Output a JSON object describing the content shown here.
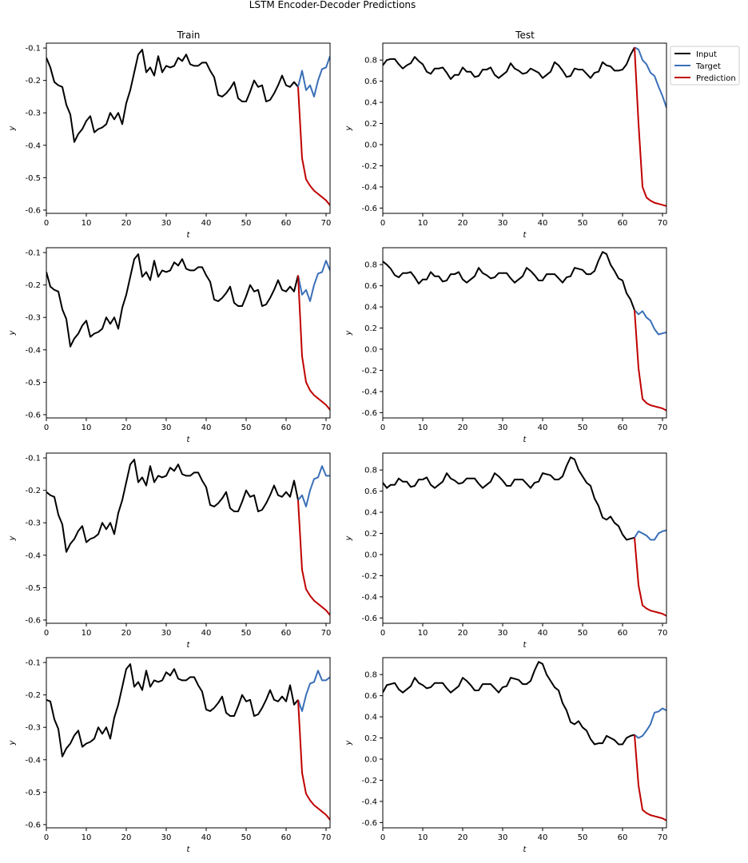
{
  "figure": {
    "title": "LSTM Encoder-Decoder Predictions",
    "col_titles": [
      "Train",
      "Test"
    ],
    "legend": [
      "Input",
      "Target",
      "Prediction"
    ]
  },
  "colors": {
    "input": "#000000",
    "target": "#3a6fb8",
    "prediction": "#c00000"
  },
  "chart_data": [
    {
      "type": "line",
      "panel": "Train row 1",
      "xlabel": "t",
      "ylabel": "y",
      "xlim": [
        0,
        71
      ],
      "ylim": [
        -0.61,
        -0.085
      ],
      "xticks": [
        0,
        10,
        20,
        30,
        40,
        50,
        60,
        70
      ],
      "yticks": [
        -0.6,
        -0.5,
        -0.4,
        -0.3,
        -0.2,
        -0.1
      ],
      "series": [
        {
          "name": "Input",
          "x_start": 0,
          "values": [
            -0.13,
            -0.16,
            -0.205,
            -0.215,
            -0.22,
            -0.275,
            -0.305,
            -0.39,
            -0.365,
            -0.35,
            -0.325,
            -0.31,
            -0.36,
            -0.35,
            -0.345,
            -0.335,
            -0.3,
            -0.32,
            -0.3,
            -0.335,
            -0.27,
            -0.23,
            -0.175,
            -0.12,
            -0.105,
            -0.175,
            -0.16,
            -0.185,
            -0.125,
            -0.175,
            -0.155,
            -0.16,
            -0.155,
            -0.13,
            -0.14,
            -0.12,
            -0.15,
            -0.155,
            -0.155,
            -0.145,
            -0.145,
            -0.17,
            -0.19,
            -0.245,
            -0.25,
            -0.24,
            -0.225,
            -0.205,
            -0.255,
            -0.265,
            -0.265,
            -0.235,
            -0.2,
            -0.22,
            -0.215,
            -0.265,
            -0.26,
            -0.24,
            -0.215,
            -0.185,
            -0.215,
            -0.22,
            -0.205,
            -0.22
          ]
        },
        {
          "name": "Target",
          "x_start": 63,
          "values": [
            -0.22,
            -0.17,
            -0.23,
            -0.215,
            -0.25,
            -0.2,
            -0.165,
            -0.16,
            -0.125
          ]
        },
        {
          "name": "Prediction",
          "x_start": 63,
          "values": [
            -0.22,
            -0.44,
            -0.505,
            -0.525,
            -0.54,
            -0.55,
            -0.56,
            -0.57,
            -0.585
          ]
        }
      ]
    },
    {
      "type": "line",
      "panel": "Test row 1",
      "xlabel": "t",
      "ylabel": "y",
      "xlim": [
        0,
        71
      ],
      "ylim": [
        -0.65,
        0.96
      ],
      "xticks": [
        0,
        10,
        20,
        30,
        40,
        50,
        60,
        70
      ],
      "yticks": [
        -0.6,
        -0.4,
        -0.2,
        0.0,
        0.2,
        0.4,
        0.6,
        0.8
      ],
      "series": [
        {
          "name": "Input",
          "x_start": 0,
          "values": [
            0.75,
            0.8,
            0.81,
            0.81,
            0.76,
            0.72,
            0.75,
            0.77,
            0.83,
            0.79,
            0.76,
            0.69,
            0.67,
            0.72,
            0.72,
            0.73,
            0.68,
            0.62,
            0.66,
            0.66,
            0.73,
            0.69,
            0.69,
            0.64,
            0.65,
            0.71,
            0.71,
            0.73,
            0.66,
            0.63,
            0.66,
            0.69,
            0.77,
            0.72,
            0.7,
            0.67,
            0.68,
            0.72,
            0.7,
            0.68,
            0.63,
            0.66,
            0.69,
            0.78,
            0.75,
            0.7,
            0.64,
            0.65,
            0.72,
            0.71,
            0.71,
            0.67,
            0.63,
            0.68,
            0.69,
            0.78,
            0.75,
            0.74,
            0.7,
            0.7,
            0.71,
            0.76,
            0.85,
            0.92
          ]
        },
        {
          "name": "Target",
          "x_start": 63,
          "values": [
            0.92,
            0.9,
            0.8,
            0.76,
            0.68,
            0.65,
            0.55,
            0.46,
            0.35
          ]
        },
        {
          "name": "Prediction",
          "x_start": 63,
          "values": [
            0.92,
            0.2,
            -0.4,
            -0.5,
            -0.53,
            -0.55,
            -0.56,
            -0.57,
            -0.58
          ]
        }
      ]
    },
    {
      "type": "line",
      "panel": "Train row 2",
      "xlabel": "t",
      "ylabel": "y",
      "xlim": [
        0,
        71
      ],
      "ylim": [
        -0.61,
        -0.085
      ],
      "xticks": [
        0,
        10,
        20,
        30,
        40,
        50,
        60,
        70
      ],
      "yticks": [
        -0.6,
        -0.5,
        -0.4,
        -0.3,
        -0.2,
        -0.1
      ],
      "series": [
        {
          "name": "Input",
          "x_start": 0,
          "values": [
            -0.16,
            -0.205,
            -0.215,
            -0.22,
            -0.275,
            -0.305,
            -0.39,
            -0.365,
            -0.35,
            -0.325,
            -0.31,
            -0.36,
            -0.35,
            -0.345,
            -0.335,
            -0.3,
            -0.32,
            -0.3,
            -0.335,
            -0.27,
            -0.23,
            -0.175,
            -0.12,
            -0.105,
            -0.175,
            -0.16,
            -0.185,
            -0.125,
            -0.175,
            -0.155,
            -0.16,
            -0.155,
            -0.13,
            -0.14,
            -0.12,
            -0.15,
            -0.155,
            -0.155,
            -0.145,
            -0.145,
            -0.17,
            -0.19,
            -0.245,
            -0.25,
            -0.24,
            -0.225,
            -0.205,
            -0.255,
            -0.265,
            -0.265,
            -0.235,
            -0.2,
            -0.22,
            -0.215,
            -0.265,
            -0.26,
            -0.24,
            -0.215,
            -0.185,
            -0.215,
            -0.22,
            -0.205,
            -0.22,
            -0.17
          ]
        },
        {
          "name": "Target",
          "x_start": 63,
          "values": [
            -0.17,
            -0.23,
            -0.215,
            -0.25,
            -0.2,
            -0.165,
            -0.16,
            -0.125,
            -0.155
          ]
        },
        {
          "name": "Prediction",
          "x_start": 63,
          "values": [
            -0.17,
            -0.42,
            -0.5,
            -0.525,
            -0.54,
            -0.55,
            -0.56,
            -0.57,
            -0.585
          ]
        }
      ]
    },
    {
      "type": "line",
      "panel": "Test row 2",
      "xlabel": "t",
      "ylabel": "y",
      "xlim": [
        0,
        71
      ],
      "ylim": [
        -0.65,
        0.96
      ],
      "xticks": [
        0,
        10,
        20,
        30,
        40,
        50,
        60,
        70
      ],
      "yticks": [
        -0.6,
        -0.4,
        -0.2,
        0.0,
        0.2,
        0.4,
        0.6,
        0.8
      ],
      "series": [
        {
          "name": "Input",
          "x_start": 0,
          "values": [
            0.83,
            0.8,
            0.76,
            0.7,
            0.68,
            0.72,
            0.72,
            0.73,
            0.68,
            0.62,
            0.66,
            0.66,
            0.73,
            0.69,
            0.69,
            0.64,
            0.65,
            0.71,
            0.71,
            0.73,
            0.66,
            0.63,
            0.66,
            0.69,
            0.77,
            0.72,
            0.7,
            0.67,
            0.68,
            0.72,
            0.72,
            0.72,
            0.67,
            0.63,
            0.66,
            0.69,
            0.77,
            0.74,
            0.7,
            0.65,
            0.65,
            0.71,
            0.71,
            0.71,
            0.67,
            0.63,
            0.68,
            0.69,
            0.77,
            0.76,
            0.75,
            0.71,
            0.71,
            0.74,
            0.84,
            0.92,
            0.9,
            0.8,
            0.74,
            0.67,
            0.65,
            0.53,
            0.47,
            0.37
          ]
        },
        {
          "name": "Target",
          "x_start": 63,
          "values": [
            0.37,
            0.33,
            0.36,
            0.3,
            0.27,
            0.19,
            0.14,
            0.15,
            0.16
          ]
        },
        {
          "name": "Prediction",
          "x_start": 63,
          "values": [
            0.37,
            -0.18,
            -0.47,
            -0.51,
            -0.53,
            -0.54,
            -0.55,
            -0.56,
            -0.58
          ]
        }
      ]
    },
    {
      "type": "line",
      "panel": "Train row 3",
      "xlabel": "t",
      "ylabel": "y",
      "xlim": [
        0,
        71
      ],
      "ylim": [
        -0.61,
        -0.085
      ],
      "xticks": [
        0,
        10,
        20,
        30,
        40,
        50,
        60,
        70
      ],
      "yticks": [
        -0.6,
        -0.5,
        -0.4,
        -0.3,
        -0.2,
        -0.1
      ],
      "series": [
        {
          "name": "Input",
          "x_start": 0,
          "values": [
            -0.205,
            -0.215,
            -0.22,
            -0.275,
            -0.305,
            -0.39,
            -0.365,
            -0.35,
            -0.325,
            -0.31,
            -0.36,
            -0.35,
            -0.345,
            -0.335,
            -0.3,
            -0.32,
            -0.3,
            -0.335,
            -0.27,
            -0.23,
            -0.175,
            -0.12,
            -0.105,
            -0.175,
            -0.16,
            -0.185,
            -0.125,
            -0.175,
            -0.155,
            -0.16,
            -0.155,
            -0.13,
            -0.14,
            -0.12,
            -0.15,
            -0.155,
            -0.155,
            -0.145,
            -0.145,
            -0.17,
            -0.19,
            -0.245,
            -0.25,
            -0.24,
            -0.225,
            -0.205,
            -0.255,
            -0.265,
            -0.265,
            -0.235,
            -0.2,
            -0.22,
            -0.215,
            -0.265,
            -0.26,
            -0.24,
            -0.215,
            -0.185,
            -0.215,
            -0.22,
            -0.205,
            -0.22,
            -0.17,
            -0.23
          ]
        },
        {
          "name": "Target",
          "x_start": 63,
          "values": [
            -0.23,
            -0.215,
            -0.25,
            -0.2,
            -0.165,
            -0.16,
            -0.125,
            -0.155,
            -0.155
          ]
        },
        {
          "name": "Prediction",
          "x_start": 63,
          "values": [
            -0.23,
            -0.445,
            -0.505,
            -0.525,
            -0.54,
            -0.55,
            -0.56,
            -0.57,
            -0.585
          ]
        }
      ]
    },
    {
      "type": "line",
      "panel": "Test row 3",
      "xlabel": "t",
      "ylabel": "y",
      "xlim": [
        0,
        71
      ],
      "ylim": [
        -0.65,
        0.96
      ],
      "xticks": [
        0,
        10,
        20,
        30,
        40,
        50,
        60,
        70
      ],
      "yticks": [
        -0.6,
        -0.4,
        -0.2,
        0.0,
        0.2,
        0.4,
        0.6,
        0.8
      ],
      "series": [
        {
          "name": "Input",
          "x_start": 0,
          "values": [
            0.68,
            0.63,
            0.66,
            0.66,
            0.72,
            0.69,
            0.69,
            0.64,
            0.65,
            0.71,
            0.71,
            0.73,
            0.66,
            0.63,
            0.66,
            0.69,
            0.77,
            0.72,
            0.7,
            0.67,
            0.68,
            0.72,
            0.72,
            0.72,
            0.67,
            0.63,
            0.66,
            0.69,
            0.77,
            0.74,
            0.7,
            0.65,
            0.65,
            0.71,
            0.71,
            0.71,
            0.67,
            0.63,
            0.68,
            0.69,
            0.77,
            0.76,
            0.75,
            0.71,
            0.71,
            0.74,
            0.84,
            0.92,
            0.9,
            0.8,
            0.74,
            0.68,
            0.65,
            0.53,
            0.46,
            0.35,
            0.33,
            0.36,
            0.3,
            0.27,
            0.19,
            0.14,
            0.15,
            0.16
          ]
        },
        {
          "name": "Target",
          "x_start": 63,
          "values": [
            0.16,
            0.22,
            0.2,
            0.18,
            0.14,
            0.14,
            0.2,
            0.22,
            0.23
          ]
        },
        {
          "name": "Prediction",
          "x_start": 63,
          "values": [
            0.16,
            -0.29,
            -0.48,
            -0.51,
            -0.53,
            -0.54,
            -0.55,
            -0.56,
            -0.58
          ]
        }
      ]
    },
    {
      "type": "line",
      "panel": "Train row 4",
      "xlabel": "t",
      "ylabel": "y",
      "xlim": [
        0,
        71
      ],
      "ylim": [
        -0.61,
        -0.085
      ],
      "xticks": [
        0,
        10,
        20,
        30,
        40,
        50,
        60,
        70
      ],
      "yticks": [
        -0.6,
        -0.5,
        -0.4,
        -0.3,
        -0.2,
        -0.1
      ],
      "series": [
        {
          "name": "Input",
          "x_start": 0,
          "values": [
            -0.215,
            -0.22,
            -0.275,
            -0.305,
            -0.39,
            -0.365,
            -0.35,
            -0.325,
            -0.31,
            -0.36,
            -0.35,
            -0.345,
            -0.335,
            -0.3,
            -0.32,
            -0.3,
            -0.335,
            -0.27,
            -0.23,
            -0.175,
            -0.12,
            -0.105,
            -0.175,
            -0.16,
            -0.185,
            -0.125,
            -0.175,
            -0.155,
            -0.16,
            -0.155,
            -0.13,
            -0.14,
            -0.12,
            -0.15,
            -0.155,
            -0.155,
            -0.145,
            -0.145,
            -0.17,
            -0.19,
            -0.245,
            -0.25,
            -0.24,
            -0.225,
            -0.205,
            -0.255,
            -0.265,
            -0.265,
            -0.235,
            -0.2,
            -0.22,
            -0.215,
            -0.265,
            -0.26,
            -0.24,
            -0.215,
            -0.185,
            -0.215,
            -0.22,
            -0.205,
            -0.22,
            -0.17,
            -0.23,
            -0.215
          ]
        },
        {
          "name": "Target",
          "x_start": 63,
          "values": [
            -0.215,
            -0.25,
            -0.2,
            -0.165,
            -0.16,
            -0.125,
            -0.155,
            -0.155,
            -0.145
          ]
        },
        {
          "name": "Prediction",
          "x_start": 63,
          "values": [
            -0.215,
            -0.44,
            -0.505,
            -0.525,
            -0.54,
            -0.55,
            -0.56,
            -0.57,
            -0.585
          ]
        }
      ]
    },
    {
      "type": "line",
      "panel": "Test row 4",
      "xlabel": "t",
      "ylabel": "y",
      "xlim": [
        0,
        71
      ],
      "ylim": [
        -0.65,
        0.96
      ],
      "xticks": [
        0,
        10,
        20,
        30,
        40,
        50,
        60,
        70
      ],
      "yticks": [
        -0.6,
        -0.4,
        -0.2,
        0.0,
        0.2,
        0.4,
        0.6,
        0.8
      ],
      "series": [
        {
          "name": "Input",
          "x_start": 0,
          "values": [
            0.63,
            0.7,
            0.71,
            0.72,
            0.66,
            0.63,
            0.66,
            0.69,
            0.77,
            0.72,
            0.7,
            0.67,
            0.68,
            0.72,
            0.72,
            0.72,
            0.67,
            0.63,
            0.66,
            0.69,
            0.77,
            0.74,
            0.7,
            0.65,
            0.65,
            0.71,
            0.71,
            0.71,
            0.67,
            0.63,
            0.68,
            0.69,
            0.77,
            0.76,
            0.75,
            0.71,
            0.71,
            0.74,
            0.84,
            0.92,
            0.9,
            0.8,
            0.74,
            0.68,
            0.65,
            0.53,
            0.46,
            0.35,
            0.33,
            0.36,
            0.3,
            0.27,
            0.19,
            0.14,
            0.15,
            0.15,
            0.22,
            0.2,
            0.18,
            0.14,
            0.14,
            0.2,
            0.22,
            0.23
          ]
        },
        {
          "name": "Target",
          "x_start": 63,
          "values": [
            0.23,
            0.2,
            0.22,
            0.27,
            0.33,
            0.44,
            0.45,
            0.48,
            0.46
          ]
        },
        {
          "name": "Prediction",
          "x_start": 63,
          "values": [
            0.23,
            -0.25,
            -0.48,
            -0.51,
            -0.53,
            -0.54,
            -0.55,
            -0.56,
            -0.58
          ]
        }
      ]
    }
  ]
}
